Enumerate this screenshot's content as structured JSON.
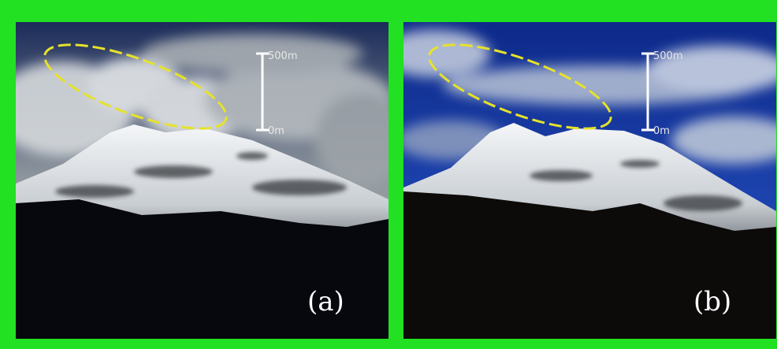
{
  "panels": [
    {
      "scale_top": "500m",
      "scale_bottom": "0m",
      "label": "(a)"
    },
    {
      "scale_top": "500m",
      "scale_bottom": "0m",
      "label": "(b)"
    }
  ]
}
